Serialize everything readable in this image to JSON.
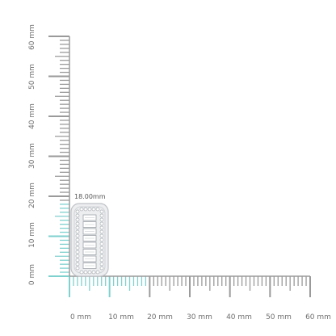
{
  "scale": {
    "unit": "mm",
    "y_labels": [
      "0 mm",
      "10 mm",
      "20 mm",
      "30 mm",
      "40 mm",
      "50 mm",
      "60 mm"
    ],
    "x_labels": [
      "0 mm",
      "10 mm",
      "20 mm",
      "30 mm",
      "40 mm",
      "50 mm",
      "60 mm"
    ],
    "max_mm": 60
  },
  "product": {
    "height_label": "18.00mm",
    "height_mm": 18,
    "width_mm": 7
  },
  "colors": {
    "ruler": "#9a9a9a",
    "highlight": "#7fd1cf",
    "label": "#6f6f6f",
    "metal": "#d9dadc"
  }
}
